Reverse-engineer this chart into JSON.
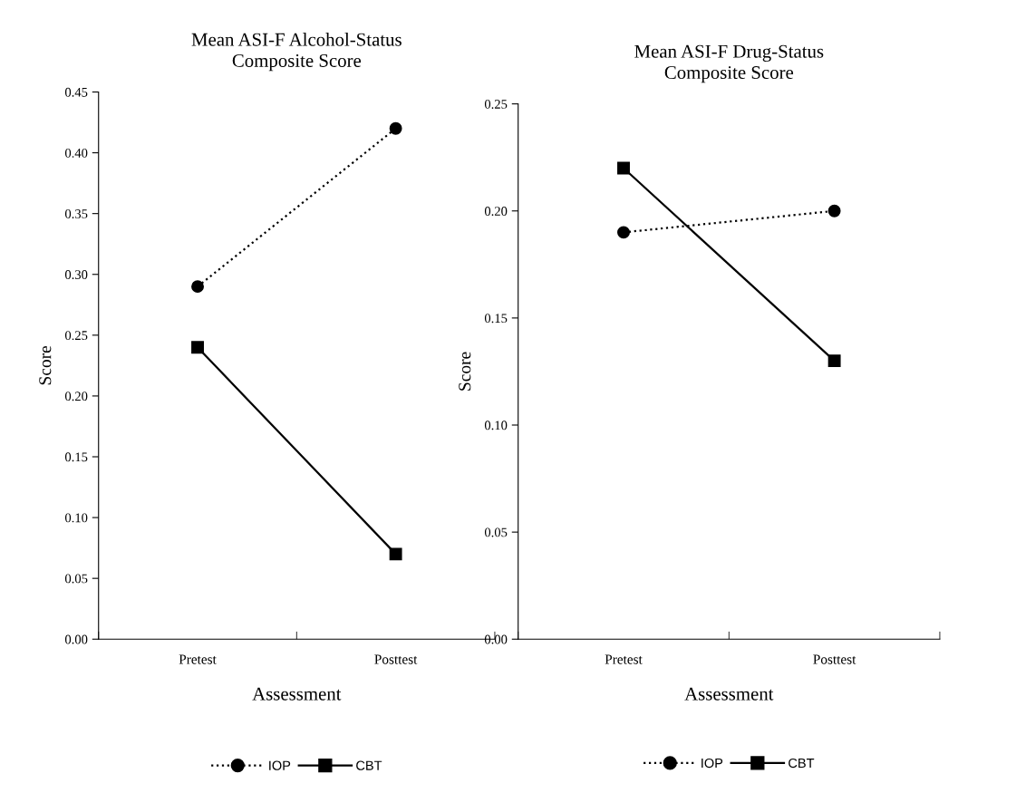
{
  "chart_data": [
    {
      "type": "line",
      "title": "Mean ASI-F Alcohol-Status\nComposite Score",
      "xlabel": "Assessment",
      "ylabel": "Score",
      "categories": [
        "Pretest",
        "Posttest"
      ],
      "series": [
        {
          "name": "IOP",
          "color": "#000000",
          "values": [
            0.29,
            0.42
          ],
          "marker": "circle",
          "line_style": "dotted"
        },
        {
          "name": "CBT",
          "color": "#000000",
          "values": [
            0.24,
            0.07
          ],
          "marker": "square",
          "line_style": "solid"
        }
      ],
      "ylim": [
        0,
        0.45
      ],
      "yticks": [
        {
          "value": 0,
          "label": "0.00"
        },
        {
          "value": 0.05,
          "label": "0.05"
        },
        {
          "value": 0.1,
          "label": "0.10"
        },
        {
          "value": 0.15,
          "label": "0.15"
        },
        {
          "value": 0.2,
          "label": "0.20"
        },
        {
          "value": 0.25,
          "label": "0.25"
        },
        {
          "value": 0.3,
          "label": "0.30"
        },
        {
          "value": 0.35,
          "label": "0.35"
        },
        {
          "value": 0.4,
          "label": "0.40"
        },
        {
          "value": 0.45,
          "label": "0.45"
        }
      ],
      "grid": false,
      "legend": "bottom"
    },
    {
      "type": "line",
      "title": "Mean ASI-F Drug-Status\nComposite Score",
      "xlabel": "Assessment",
      "ylabel": "Score",
      "categories": [
        "Pretest",
        "Posttest"
      ],
      "series": [
        {
          "name": "IOP",
          "color": "#000000",
          "values": [
            0.19,
            0.2
          ],
          "marker": "circle",
          "line_style": "dotted"
        },
        {
          "name": "CBT",
          "color": "#000000",
          "values": [
            0.22,
            0.13
          ],
          "marker": "square",
          "line_style": "solid"
        }
      ],
      "ylim": [
        0,
        0.25
      ],
      "yticks": [
        {
          "value": 0,
          "label": "0.00"
        },
        {
          "value": 0.05,
          "label": "0.05"
        },
        {
          "value": 0.1,
          "label": "0.10"
        },
        {
          "value": 0.15,
          "label": "0.15"
        },
        {
          "value": 0.2,
          "label": "0.20"
        },
        {
          "value": 0.25,
          "label": "0.25"
        }
      ],
      "grid": false,
      "legend": "bottom"
    }
  ]
}
